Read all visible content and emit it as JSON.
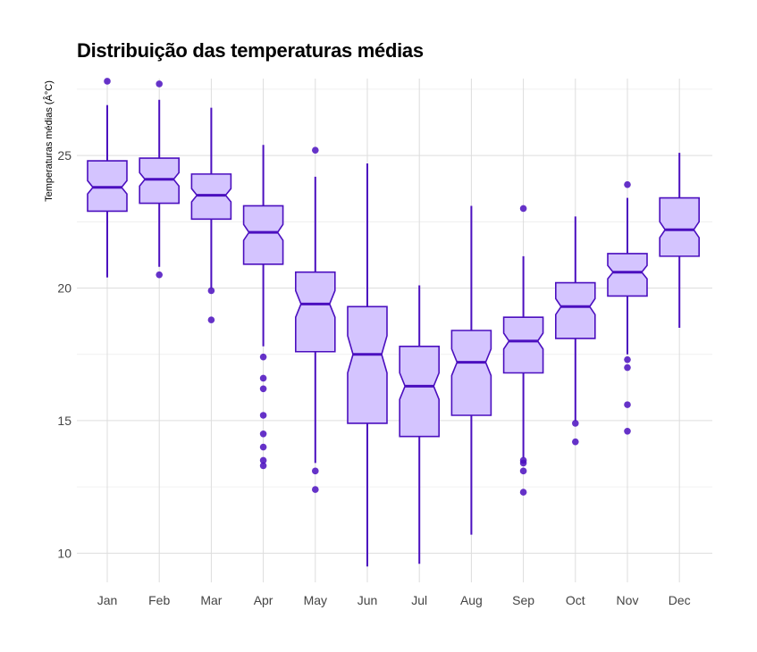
{
  "chart_data": {
    "type": "boxplot",
    "title": "Distribuição das temperaturas médias",
    "xlabel": "",
    "ylabel": "Temperaturas médias (Â°C)",
    "ylim": [
      8.9,
      27.9
    ],
    "yticks": [
      10,
      15,
      20,
      25
    ],
    "grid": true,
    "notched": true,
    "colors": {
      "fill": "#d4c4ff",
      "stroke": "#4b0fbf",
      "outlier": "#4b0fbf",
      "grid": "#dddddd",
      "tick_text": "#444444"
    },
    "categories": [
      "Jan",
      "Feb",
      "Mar",
      "Apr",
      "May",
      "Jun",
      "Jul",
      "Aug",
      "Sep",
      "Oct",
      "Nov",
      "Dec"
    ],
    "boxes": [
      {
        "label": "Jan",
        "whisker_low": 20.4,
        "q1": 22.9,
        "median": 23.8,
        "q3": 24.8,
        "whisker_high": 26.9,
        "notch_low": 23.55,
        "notch_high": 24.05,
        "outliers": [
          27.8
        ]
      },
      {
        "label": "Feb",
        "whisker_low": 20.8,
        "q1": 23.2,
        "median": 24.1,
        "q3": 24.9,
        "whisker_high": 27.1,
        "notch_low": 23.85,
        "notch_high": 24.35,
        "outliers": [
          27.7,
          20.5
        ]
      },
      {
        "label": "Mar",
        "whisker_low": 20.0,
        "q1": 22.6,
        "median": 23.5,
        "q3": 24.3,
        "whisker_high": 26.8,
        "notch_low": 23.25,
        "notch_high": 23.75,
        "outliers": [
          19.9,
          18.8
        ]
      },
      {
        "label": "Apr",
        "whisker_low": 17.8,
        "q1": 20.9,
        "median": 22.1,
        "q3": 23.1,
        "whisker_high": 25.4,
        "notch_low": 21.8,
        "notch_high": 22.4,
        "outliers": [
          17.4,
          16.6,
          16.2,
          15.2,
          14.5,
          14.0,
          13.5,
          13.3
        ]
      },
      {
        "label": "May",
        "whisker_low": 13.4,
        "q1": 17.6,
        "median": 19.4,
        "q3": 20.6,
        "whisker_high": 24.2,
        "notch_low": 18.9,
        "notch_high": 19.9,
        "outliers": [
          25.2,
          13.1,
          12.4
        ]
      },
      {
        "label": "Jun",
        "whisker_low": 9.5,
        "q1": 14.9,
        "median": 17.5,
        "q3": 19.3,
        "whisker_high": 24.7,
        "notch_low": 16.8,
        "notch_high": 18.2,
        "outliers": []
      },
      {
        "label": "Jul",
        "whisker_low": 9.6,
        "q1": 14.4,
        "median": 16.3,
        "q3": 17.8,
        "whisker_high": 20.1,
        "notch_low": 15.8,
        "notch_high": 16.8,
        "outliers": []
      },
      {
        "label": "Aug",
        "whisker_low": 10.7,
        "q1": 15.2,
        "median": 17.2,
        "q3": 18.4,
        "whisker_high": 23.1,
        "notch_low": 16.7,
        "notch_high": 17.7,
        "outliers": []
      },
      {
        "label": "Sep",
        "whisker_low": 13.6,
        "q1": 16.8,
        "median": 18.0,
        "q3": 18.9,
        "whisker_high": 21.2,
        "notch_low": 17.7,
        "notch_high": 18.3,
        "outliers": [
          23.0,
          13.5,
          13.4,
          13.1,
          12.3
        ]
      },
      {
        "label": "Oct",
        "whisker_low": 15.0,
        "q1": 18.1,
        "median": 19.3,
        "q3": 20.2,
        "whisker_high": 22.7,
        "notch_low": 19.0,
        "notch_high": 19.6,
        "outliers": [
          14.9,
          14.2
        ]
      },
      {
        "label": "Nov",
        "whisker_low": 17.5,
        "q1": 19.7,
        "median": 20.6,
        "q3": 21.3,
        "whisker_high": 23.4,
        "notch_low": 20.35,
        "notch_high": 20.85,
        "outliers": [
          23.9,
          17.3,
          17.0,
          15.6,
          14.6
        ]
      },
      {
        "label": "Dec",
        "whisker_low": 18.5,
        "q1": 21.2,
        "median": 22.2,
        "q3": 23.4,
        "whisker_high": 25.1,
        "notch_low": 21.9,
        "notch_high": 22.5,
        "outliers": []
      }
    ]
  }
}
